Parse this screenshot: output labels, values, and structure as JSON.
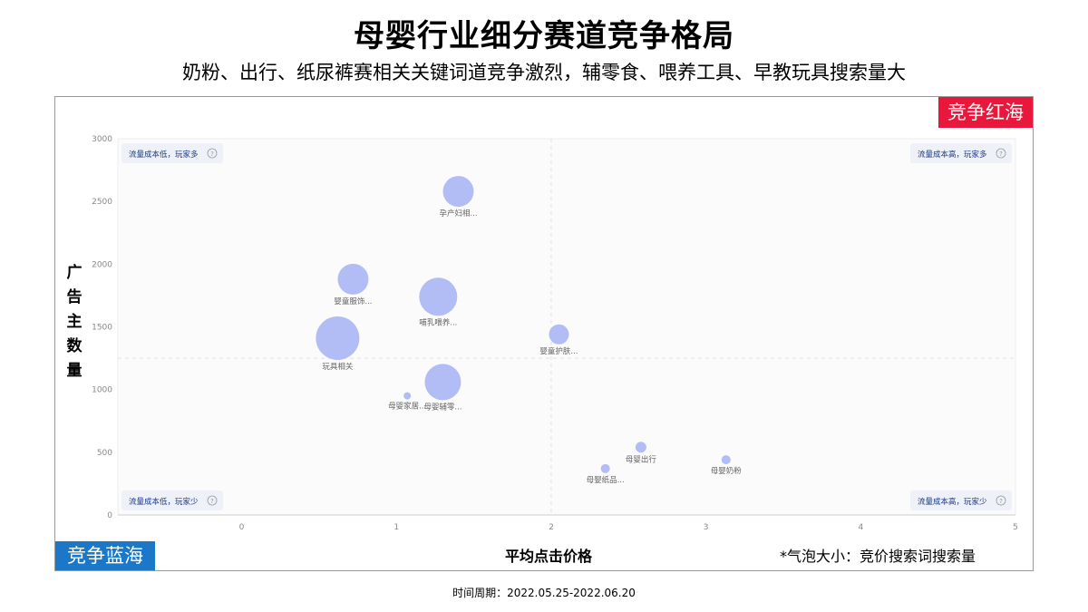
{
  "header": {
    "title": "母婴行业细分赛道竞争格局",
    "subtitle": "奶粉、出行、纸尿裤赛相关关键词道竞争激烈，辅零食、喂养工具、早教玩具搜索量大"
  },
  "corner_tags": {
    "red": "竞争红海",
    "blue": "竞争蓝海"
  },
  "quadrants": {
    "top_left": "流量成本低，玩家多",
    "top_right": "流量成本高，玩家多",
    "bottom_left": "流量成本低，玩家少",
    "bottom_right": "流量成本高，玩家少",
    "info_icon": "?"
  },
  "footer": {
    "bubble_note": "*气泡大小：竞价搜索词搜索量",
    "period": "时间周期：2022.05.25-2022.06.20"
  },
  "colors": {
    "bubble": "#aab6f5",
    "red_tag": "#e8173c",
    "blue_tag": "#1b78c8",
    "quadrant_text": "#1e3a8a"
  },
  "chart_data": {
    "type": "scatter",
    "xlabel": "平均点击价格",
    "ylabel": "广告主数量",
    "xlim": [
      -0.8,
      5
    ],
    "ylim": [
      0,
      3000
    ],
    "xticks": [
      "0",
      "1",
      "2",
      "3",
      "4",
      "5"
    ],
    "yticks": [
      "0",
      "500",
      "1000",
      "1500",
      "2000",
      "2500",
      "3000"
    ],
    "divider": {
      "x": 2.0,
      "y": 1250
    },
    "grid": false,
    "points": [
      {
        "label": "孕产妇相...",
        "x": 1.4,
        "y": 2580,
        "size": 17
      },
      {
        "label": "婴童服饰...",
        "x": 0.72,
        "y": 1880,
        "size": 17
      },
      {
        "label": "哺乳喂养...",
        "x": 1.27,
        "y": 1740,
        "size": 21
      },
      {
        "label": "婴童护肤...",
        "x": 2.05,
        "y": 1440,
        "size": 11
      },
      {
        "label": "玩具相关",
        "x": 0.62,
        "y": 1410,
        "size": 24
      },
      {
        "label": "母婴辅零...",
        "x": 1.3,
        "y": 1060,
        "size": 20
      },
      {
        "label": "母婴家居...",
        "x": 1.07,
        "y": 950,
        "size": 4
      },
      {
        "label": "母婴出行",
        "x": 2.58,
        "y": 540,
        "size": 6
      },
      {
        "label": "母婴奶粉",
        "x": 3.13,
        "y": 440,
        "size": 5
      },
      {
        "label": "母婴纸品...",
        "x": 2.35,
        "y": 370,
        "size": 5
      }
    ]
  }
}
